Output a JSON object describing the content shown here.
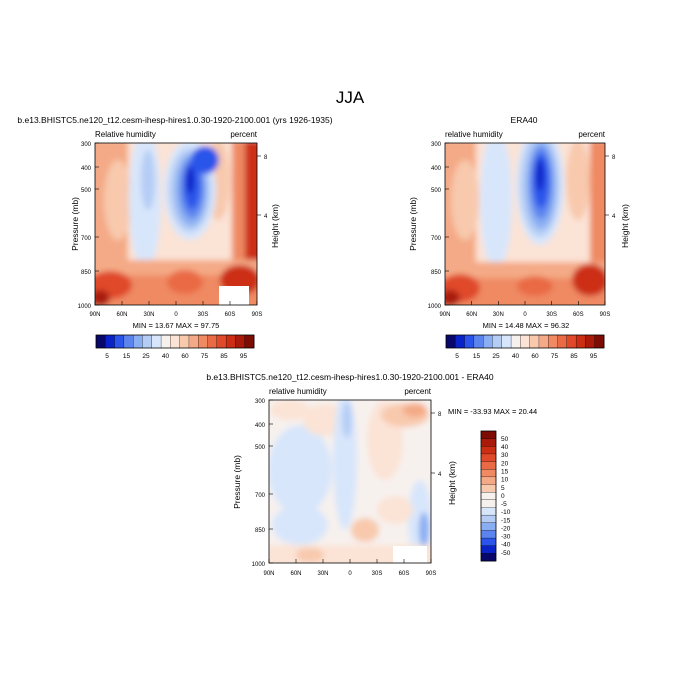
{
  "figure": {
    "title": "JJA"
  },
  "colors": {
    "negative_scale": [
      "#08086b",
      "#0a23c8",
      "#2b55ea",
      "#5b84ee",
      "#8aaef2",
      "#b5cdf5",
      "#d8e6fb"
    ],
    "neutral": "#f7f1ee",
    "positive_scale": [
      "#fbe3d6",
      "#f8c9ad",
      "#f4aa86",
      "#ef8a63",
      "#e96a45",
      "#e04a2a",
      "#cc2e14",
      "#a91a0a",
      "#7d0c04"
    ]
  },
  "chart_data": [
    {
      "type": "heatmap",
      "title": "b.e13.BHISTC5.ne120_t12.cesm-ihesp-hires1.0.30-1920-2100.001 (yrs 1926-1935)",
      "left_label": "Relative humidity",
      "right_label": "percent",
      "ylabel": "Pressure (mb)",
      "y2label": "Height (km)",
      "x_ticks": [
        "90N",
        "60N",
        "30N",
        "0",
        "30S",
        "60S",
        "90S"
      ],
      "y_ticks": [
        "300",
        "400",
        "500",
        "700",
        "850",
        "1000"
      ],
      "y2_ticks": [
        "8",
        "4"
      ],
      "xlim": [
        90,
        -90
      ],
      "ylim": [
        1000,
        300
      ],
      "stats": "MIN =  13.67  MAX =  97.75",
      "colorbar_labels": [
        "5",
        "15",
        "25",
        "40",
        "60",
        "75",
        "85",
        "95"
      ]
    },
    {
      "type": "heatmap",
      "title": "ERA40",
      "left_label": "relative humidity",
      "right_label": "percent",
      "ylabel": "Pressure (mb)",
      "y2label": "Height (km)",
      "x_ticks": [
        "90N",
        "60N",
        "30N",
        "0",
        "30S",
        "60S",
        "90S"
      ],
      "y_ticks": [
        "300",
        "400",
        "500",
        "700",
        "850",
        "1000"
      ],
      "y2_ticks": [
        "8",
        "4"
      ],
      "xlim": [
        90,
        -90
      ],
      "ylim": [
        1000,
        300
      ],
      "stats": "MIN =  14.48  MAX =  96.32",
      "colorbar_labels": [
        "5",
        "15",
        "25",
        "40",
        "60",
        "75",
        "85",
        "95"
      ]
    },
    {
      "type": "heatmap",
      "title": "b.e13.BHISTC5.ne120_t12.cesm-ihesp-hires1.0.30-1920-2100.001 - ERA40",
      "left_label": "relative humidity",
      "right_label": "percent",
      "ylabel": "Pressure (mb)",
      "y2label": "Height (km)",
      "x_ticks": [
        "90N",
        "60N",
        "30N",
        "0",
        "30S",
        "60S",
        "90S"
      ],
      "y_ticks": [
        "300",
        "400",
        "500",
        "700",
        "850",
        "1000"
      ],
      "y2_ticks": [
        "8",
        "4"
      ],
      "xlim": [
        90,
        -90
      ],
      "ylim": [
        1000,
        300
      ],
      "stats": "MIN = -33.93  MAX =  20.44",
      "colorbar_labels": [
        "50",
        "40",
        "30",
        "20",
        "15",
        "10",
        "5",
        "0",
        "-5",
        "-10",
        "-15",
        "-20",
        "-30",
        "-40",
        "-50"
      ]
    }
  ]
}
